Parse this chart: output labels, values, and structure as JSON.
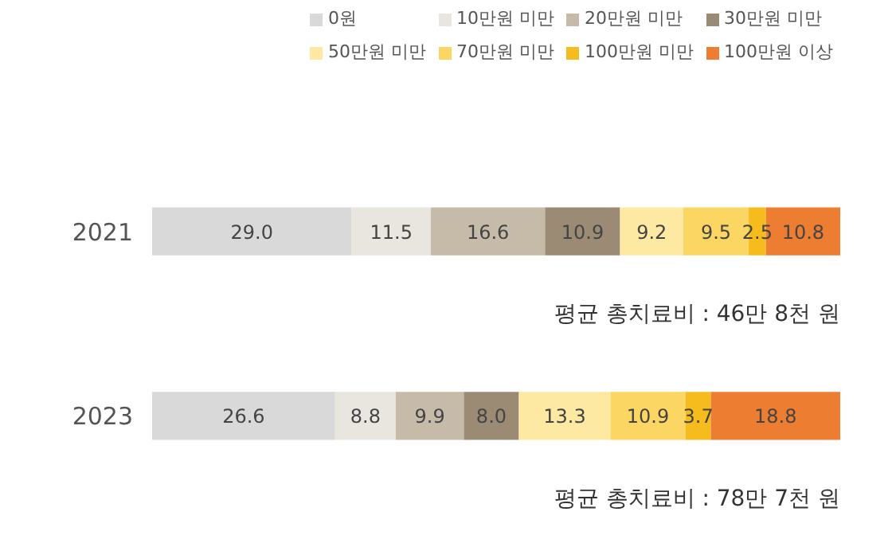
{
  "chart_data": {
    "type": "bar",
    "orientation": "horizontal",
    "stacked": true,
    "legend": "top",
    "grid": false,
    "categories": [
      "2021",
      "2023"
    ],
    "series": [
      {
        "name": "0원",
        "color": "#d9d9d9",
        "values": [
          29.0,
          26.6
        ],
        "value_labels": [
          "29.0",
          "26.6"
        ]
      },
      {
        "name": "10만원 미만",
        "color": "#e9e6e0",
        "values": [
          11.5,
          8.8
        ],
        "value_labels": [
          "11.5",
          "8.8"
        ]
      },
      {
        "name": "20만원 미만",
        "color": "#c6baa9",
        "values": [
          16.6,
          9.9
        ],
        "value_labels": [
          "16.6",
          "9.9"
        ]
      },
      {
        "name": "30만원 미만",
        "color": "#9b8b74",
        "values": [
          10.9,
          8.0
        ],
        "value_labels": [
          "10.9",
          "8.0"
        ]
      },
      {
        "name": "50만원 미만",
        "color": "#fde9a2",
        "values": [
          9.2,
          13.3
        ],
        "value_labels": [
          "9.2",
          "13.3"
        ]
      },
      {
        "name": "70만원 미만",
        "color": "#fcd663",
        "values": [
          9.5,
          10.9
        ],
        "value_labels": [
          "9.5",
          "10.9"
        ]
      },
      {
        "name": "100만원 미만",
        "color": "#f6bc1e",
        "values": [
          2.5,
          3.7
        ],
        "value_labels": [
          "2.5",
          "3.7"
        ]
      },
      {
        "name": "100만원 이상",
        "color": "#ed7d31",
        "values": [
          10.8,
          18.8
        ],
        "value_labels": [
          "10.8",
          "18.8"
        ]
      }
    ],
    "annotations": [
      "평균 총치료비 : 46만 8천 원",
      "평균 총치료비 : 78만 7천 원"
    ]
  }
}
